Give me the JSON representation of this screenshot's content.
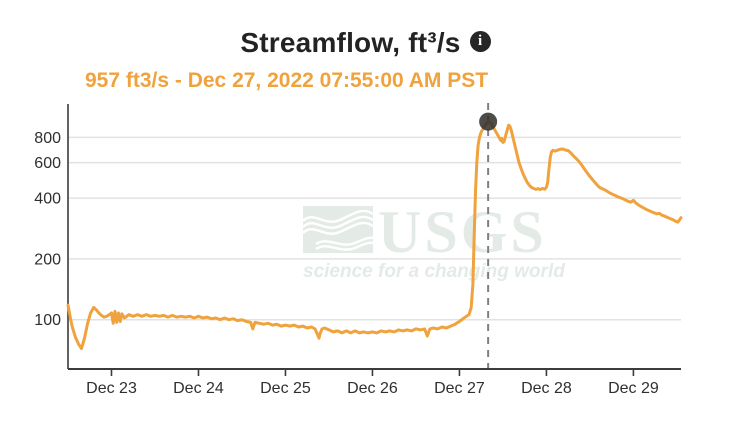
{
  "header": {
    "title": "Streamflow, ft³/s",
    "info_glyph": "i",
    "subtitle": "957 ft3/s - Dec 27, 2022 07:55:00 AM PST",
    "title_color": "#232323",
    "subtitle_color": "#f0a23c"
  },
  "watermark": {
    "org": "USGS",
    "tagline": "science for a changing world",
    "color": "#e4ebe6"
  },
  "chart_data": {
    "type": "line",
    "title": "Streamflow, ft³/s",
    "subtitle": "957 ft3/s - Dec 27, 2022 07:55:00 AM PST",
    "ylabel": "Streamflow, ft³/s",
    "y_scale": "log",
    "y_domain": [
      57,
      1170
    ],
    "y_ticks": [
      100,
      200,
      400,
      600,
      800
    ],
    "grid": "horizontal",
    "x_unit": "days (PST), t=0 at Dec 22 2022 00:00",
    "x_domain": [
      0.5,
      7.547
    ],
    "x_ticks": [
      {
        "t": 1,
        "label": "Dec 23"
      },
      {
        "t": 2,
        "label": "Dec 24"
      },
      {
        "t": 3,
        "label": "Dec 25"
      },
      {
        "t": 4,
        "label": "Dec 26"
      },
      {
        "t": 5,
        "label": "Dec 27"
      },
      {
        "t": 6,
        "label": "Dec 28"
      },
      {
        "t": 7,
        "label": "Dec 29"
      }
    ],
    "line_color": "#f0a23c",
    "grid_color": "#e2e2e2",
    "axis_color": "#3b3b3b",
    "cursor_color": "#7f7f7f",
    "marker": {
      "t": 5.3299,
      "value": 957,
      "label": "Dec 27, 2022 07:55:00 AM PST",
      "color": "#2e2d2c"
    },
    "series": [
      {
        "name": "Streamflow",
        "points": [
          [
            0.5,
            118
          ],
          [
            0.525,
            103
          ],
          [
            0.55,
            92
          ],
          [
            0.585,
            82
          ],
          [
            0.62,
            76
          ],
          [
            0.655,
            72
          ],
          [
            0.69,
            81
          ],
          [
            0.725,
            96
          ],
          [
            0.76,
            108
          ],
          [
            0.795,
            115
          ],
          [
            0.825,
            112
          ],
          [
            0.855,
            108
          ],
          [
            0.885,
            105
          ],
          [
            0.915,
            103
          ],
          [
            0.945,
            104
          ],
          [
            0.975,
            106
          ],
          [
            1.0,
            108
          ],
          [
            1.02,
            96
          ],
          [
            1.04,
            110
          ],
          [
            1.06,
            97
          ],
          [
            1.08,
            108
          ],
          [
            1.1,
            98
          ],
          [
            1.12,
            107
          ],
          [
            1.15,
            102
          ],
          [
            1.2,
            106
          ],
          [
            1.25,
            104
          ],
          [
            1.3,
            106
          ],
          [
            1.35,
            104
          ],
          [
            1.4,
            106
          ],
          [
            1.45,
            104
          ],
          [
            1.5,
            105
          ],
          [
            1.55,
            104
          ],
          [
            1.6,
            105
          ],
          [
            1.65,
            103
          ],
          [
            1.7,
            105
          ],
          [
            1.75,
            103
          ],
          [
            1.8,
            104
          ],
          [
            1.85,
            103
          ],
          [
            1.9,
            104
          ],
          [
            1.95,
            102
          ],
          [
            2.0,
            104
          ],
          [
            2.05,
            102
          ],
          [
            2.1,
            103
          ],
          [
            2.15,
            101
          ],
          [
            2.2,
            102
          ],
          [
            2.25,
            100
          ],
          [
            2.3,
            102
          ],
          [
            2.35,
            100
          ],
          [
            2.4,
            101
          ],
          [
            2.45,
            99
          ],
          [
            2.5,
            100
          ],
          [
            2.55,
            98
          ],
          [
            2.6,
            97
          ],
          [
            2.625,
            90
          ],
          [
            2.65,
            97
          ],
          [
            2.7,
            96
          ],
          [
            2.75,
            95
          ],
          [
            2.8,
            96
          ],
          [
            2.85,
            94
          ],
          [
            2.9,
            95
          ],
          [
            2.95,
            93
          ],
          [
            3.0,
            94
          ],
          [
            3.05,
            93
          ],
          [
            3.1,
            94
          ],
          [
            3.15,
            92
          ],
          [
            3.2,
            93
          ],
          [
            3.25,
            91
          ],
          [
            3.3,
            92
          ],
          [
            3.34,
            90
          ],
          [
            3.37,
            84
          ],
          [
            3.385,
            81
          ],
          [
            3.4,
            86
          ],
          [
            3.42,
            90
          ],
          [
            3.45,
            91
          ],
          [
            3.5,
            89
          ],
          [
            3.55,
            87
          ],
          [
            3.6,
            88
          ],
          [
            3.65,
            86
          ],
          [
            3.7,
            88
          ],
          [
            3.75,
            86
          ],
          [
            3.8,
            88
          ],
          [
            3.85,
            86
          ],
          [
            3.9,
            87
          ],
          [
            3.95,
            86
          ],
          [
            4.0,
            87
          ],
          [
            4.05,
            86
          ],
          [
            4.1,
            88
          ],
          [
            4.15,
            87
          ],
          [
            4.2,
            88
          ],
          [
            4.25,
            87
          ],
          [
            4.3,
            89
          ],
          [
            4.35,
            88
          ],
          [
            4.4,
            89
          ],
          [
            4.45,
            88
          ],
          [
            4.5,
            90
          ],
          [
            4.55,
            89
          ],
          [
            4.6,
            90
          ],
          [
            4.63,
            83
          ],
          [
            4.66,
            90
          ],
          [
            4.7,
            91
          ],
          [
            4.75,
            90
          ],
          [
            4.8,
            92
          ],
          [
            4.85,
            91
          ],
          [
            4.9,
            93
          ],
          [
            4.95,
            95
          ],
          [
            5.0,
            98
          ],
          [
            5.04,
            101
          ],
          [
            5.08,
            104
          ],
          [
            5.11,
            106
          ],
          [
            5.135,
            115
          ],
          [
            5.155,
            150
          ],
          [
            5.17,
            260
          ],
          [
            5.185,
            430
          ],
          [
            5.2,
            600
          ],
          [
            5.215,
            730
          ],
          [
            5.23,
            800
          ],
          [
            5.25,
            850
          ],
          [
            5.27,
            880
          ],
          [
            5.29,
            910
          ],
          [
            5.31,
            935
          ],
          [
            5.33,
            957
          ],
          [
            5.355,
            948
          ],
          [
            5.38,
            915
          ],
          [
            5.405,
            872
          ],
          [
            5.43,
            838
          ],
          [
            5.455,
            800
          ],
          [
            5.475,
            772
          ],
          [
            5.485,
            790
          ],
          [
            5.5,
            755
          ],
          [
            5.515,
            765
          ],
          [
            5.53,
            810
          ],
          [
            5.55,
            872
          ],
          [
            5.565,
            920
          ],
          [
            5.58,
            908
          ],
          [
            5.6,
            855
          ],
          [
            5.62,
            782
          ],
          [
            5.645,
            705
          ],
          [
            5.665,
            650
          ],
          [
            5.685,
            600
          ],
          [
            5.705,
            565
          ],
          [
            5.73,
            530
          ],
          [
            5.755,
            502
          ],
          [
            5.78,
            478
          ],
          [
            5.805,
            462
          ],
          [
            5.83,
            452
          ],
          [
            5.855,
            446
          ],
          [
            5.88,
            442
          ],
          [
            5.905,
            446
          ],
          [
            5.93,
            441
          ],
          [
            5.955,
            447
          ],
          [
            5.98,
            443
          ],
          [
            6.0,
            452
          ],
          [
            6.015,
            480
          ],
          [
            6.03,
            560
          ],
          [
            6.045,
            640
          ],
          [
            6.06,
            678
          ],
          [
            6.075,
            690
          ],
          [
            6.1,
            684
          ],
          [
            6.13,
            692
          ],
          [
            6.16,
            698
          ],
          [
            6.19,
            700
          ],
          [
            6.22,
            692
          ],
          [
            6.25,
            688
          ],
          [
            6.28,
            670
          ],
          [
            6.31,
            648
          ],
          [
            6.34,
            630
          ],
          [
            6.37,
            610
          ],
          [
            6.4,
            588
          ],
          [
            6.43,
            563
          ],
          [
            6.46,
            540
          ],
          [
            6.49,
            518
          ],
          [
            6.52,
            500
          ],
          [
            6.55,
            482
          ],
          [
            6.58,
            466
          ],
          [
            6.61,
            452
          ],
          [
            6.64,
            446
          ],
          [
            6.67,
            440
          ],
          [
            6.7,
            432
          ],
          [
            6.73,
            424
          ],
          [
            6.76,
            418
          ],
          [
            6.79,
            412
          ],
          [
            6.82,
            406
          ],
          [
            6.85,
            402
          ],
          [
            6.88,
            397
          ],
          [
            6.91,
            391
          ],
          [
            6.94,
            386
          ],
          [
            6.97,
            382
          ],
          [
            7.0,
            390
          ],
          [
            7.03,
            378
          ],
          [
            7.06,
            370
          ],
          [
            7.09,
            363
          ],
          [
            7.12,
            357
          ],
          [
            7.15,
            351
          ],
          [
            7.18,
            347
          ],
          [
            7.21,
            342
          ],
          [
            7.24,
            338
          ],
          [
            7.27,
            334
          ],
          [
            7.3,
            336
          ],
          [
            7.33,
            329
          ],
          [
            7.36,
            326
          ],
          [
            7.39,
            321
          ],
          [
            7.42,
            317
          ],
          [
            7.45,
            313
          ],
          [
            7.48,
            308
          ],
          [
            7.51,
            304
          ],
          [
            7.53,
            312
          ],
          [
            7.547,
            320
          ]
        ]
      }
    ]
  }
}
